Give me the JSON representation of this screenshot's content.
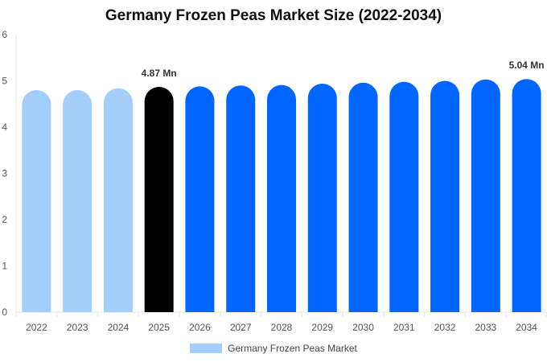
{
  "chart_data": {
    "type": "bar",
    "title": "Germany Frozen Peas Market Size (2022-2034)",
    "categories": [
      "2022",
      "2023",
      "2024",
      "2025",
      "2026",
      "2027",
      "2028",
      "2029",
      "2030",
      "2031",
      "2032",
      "2033",
      "2034"
    ],
    "series": [
      {
        "name": "Germany Frozen Peas Market",
        "values": [
          4.8,
          4.8,
          4.84,
          4.87,
          4.88,
          4.9,
          4.91,
          4.94,
          4.96,
          4.98,
          5.0,
          5.03,
          5.04
        ]
      }
    ],
    "ylim": [
      0,
      6
    ],
    "yticks": [
      0,
      1,
      2,
      3,
      4,
      5,
      6
    ],
    "data_labels": [
      {
        "index": 3,
        "text": "4.87 Mn"
      },
      {
        "index": 12,
        "text": "5.04 Mn"
      }
    ],
    "bar_colors": {
      "historical": "#a3cdfb",
      "current": "#000000",
      "forecast": "#0066ff"
    },
    "current_index": 3,
    "legend_position": "bottom",
    "grid": false
  }
}
